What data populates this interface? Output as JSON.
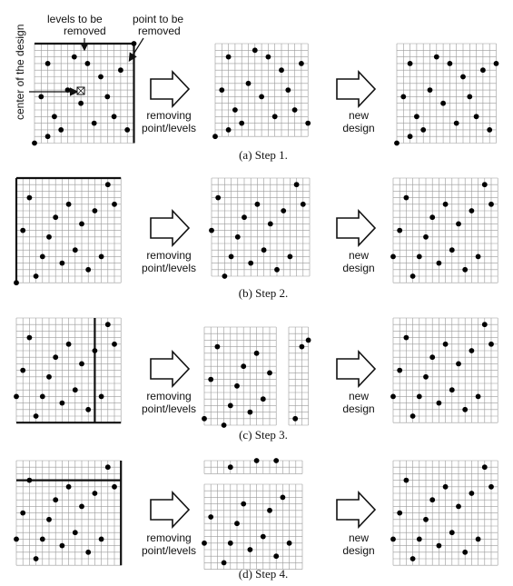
{
  "figure": {
    "annotations": {
      "levels_label_1": "levels to be",
      "levels_label_2": "removed",
      "point_label_1": "point to be",
      "point_label_2": "removed",
      "center_label": "center of the design"
    },
    "arrow_labels": {
      "removing_1": "removing",
      "removing_2": "point/levels",
      "new_1": "new",
      "new_2": "design"
    },
    "steps": [
      {
        "caption": "(a) Step 1."
      },
      {
        "caption": "(b) Step 2."
      },
      {
        "caption": "(c) Step 3."
      },
      {
        "caption": "(d) Step 4."
      }
    ]
  }
}
